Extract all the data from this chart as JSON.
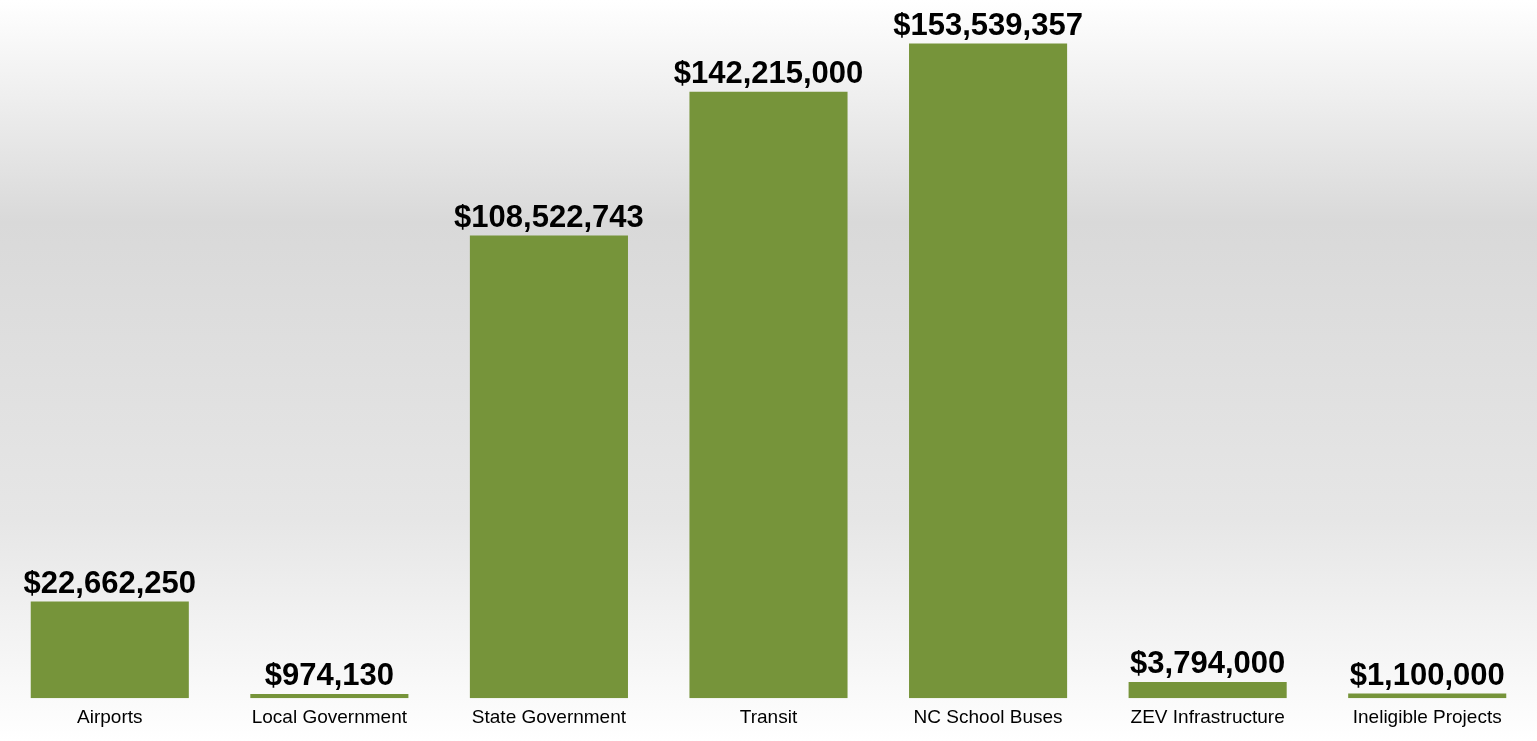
{
  "chart_data": {
    "type": "bar",
    "categories": [
      "Airports",
      "Local Government",
      "State Government",
      "Transit",
      "NC School Buses",
      "ZEV Infrastructure",
      "Ineligible Projects"
    ],
    "values": [
      22662250,
      974130,
      108522743,
      142215000,
      153539357,
      3794000,
      1100000
    ],
    "value_labels": [
      "$22,662,250",
      "$974,130",
      "$108,522,743",
      "$142,215,000",
      "$153,539,357",
      "$3,794,000",
      "$1,100,000"
    ],
    "color": "#76943a",
    "grid": false,
    "legend": false
  }
}
